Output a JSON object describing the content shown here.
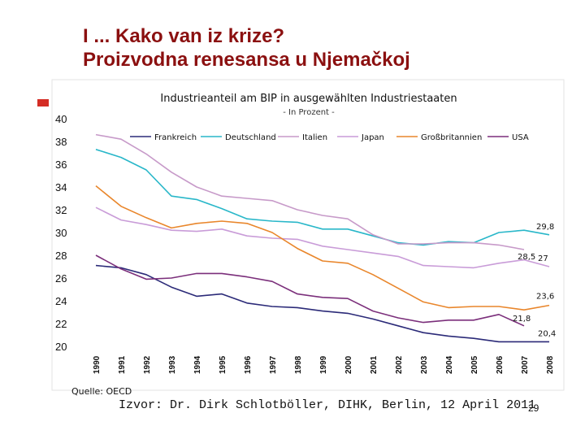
{
  "slide": {
    "title_line1": "I ... Kako van iz krize?",
    "title_line2": "Proizvodna renesansa u Njemačkoj",
    "source": "Quelle: OECD",
    "izvor": "Izvor: Dr. Dirk Schlotböller, DIHK, Berlin, 12 April 2011",
    "page_number": "29",
    "accent_color": "#8b1010"
  },
  "chart_data": {
    "type": "line",
    "title": "Industrieanteil am BIP in ausgewählten Industriestaaten",
    "subtitle": "- In Prozent -",
    "ylim": [
      20,
      40
    ],
    "yticks": [
      "20",
      "22",
      "24",
      "26",
      "28",
      "30",
      "32",
      "34",
      "36",
      "38",
      "40"
    ],
    "x": [
      "1990",
      "1991",
      "1992",
      "1993",
      "1994",
      "1995",
      "1996",
      "1997",
      "1998",
      "1999",
      "2000",
      "2001",
      "2002",
      "2003",
      "2004",
      "2005",
      "2006",
      "2007",
      "2008"
    ],
    "grid": false,
    "legend_position": "top",
    "series": [
      {
        "name": "Frankreich",
        "color": "#2b2a78",
        "values": [
          27.1,
          26.9,
          26.3,
          25.2,
          24.4,
          24.6,
          23.8,
          23.5,
          23.4,
          23.1,
          22.9,
          22.4,
          21.8,
          21.2,
          20.9,
          20.7,
          20.4,
          20.4,
          20.4
        ]
      },
      {
        "name": "Deutschland",
        "color": "#29b7c9",
        "values": [
          37.3,
          36.6,
          35.5,
          33.2,
          32.9,
          32.1,
          31.2,
          31.0,
          30.9,
          30.3,
          30.3,
          29.7,
          29.1,
          28.9,
          29.2,
          29.1,
          30.0,
          30.2,
          29.8
        ]
      },
      {
        "name": "Italien",
        "color": "#c79ac9",
        "values": [
          38.6,
          38.2,
          36.9,
          35.3,
          34.0,
          33.2,
          33.0,
          32.8,
          32.0,
          31.5,
          31.2,
          29.8,
          29.0,
          29.0,
          29.1,
          29.1,
          28.9,
          28.5,
          null
        ]
      },
      {
        "name": "Japan",
        "color": "#c99cd8",
        "values": [
          32.2,
          31.1,
          30.7,
          30.2,
          30.1,
          30.3,
          29.7,
          29.5,
          29.4,
          28.8,
          28.5,
          28.2,
          27.9,
          27.1,
          27.0,
          26.9,
          27.3,
          27.6,
          27.0
        ]
      },
      {
        "name": "Großbritannien",
        "color": "#e9862b",
        "values": [
          34.1,
          32.3,
          31.3,
          30.4,
          30.8,
          31.0,
          30.8,
          30.0,
          28.6,
          27.5,
          27.3,
          26.3,
          25.1,
          23.9,
          23.4,
          23.5,
          23.5,
          23.2,
          23.6
        ]
      },
      {
        "name": "USA",
        "color": "#7b2f7b",
        "values": [
          28.0,
          26.8,
          25.9,
          26.0,
          26.4,
          26.4,
          26.1,
          25.7,
          24.6,
          24.3,
          24.2,
          23.1,
          22.5,
          22.1,
          22.3,
          22.3,
          22.8,
          21.8,
          null
        ]
      }
    ],
    "data_labels": [
      {
        "text": "29,8",
        "series": "Deutschland",
        "x": "2008",
        "y": 29.8
      },
      {
        "text": "28,5",
        "series": "Italien",
        "x": "2007",
        "y": 28.5
      },
      {
        "text": "27",
        "series": "Japan",
        "x": "2008",
        "y": 27.0
      },
      {
        "text": "23,6",
        "series": "Großbritannien",
        "x": "2008",
        "y": 23.6
      },
      {
        "text": "21,8",
        "series": "USA",
        "x": "2007",
        "y": 21.8
      },
      {
        "text": "20,4",
        "series": "Frankreich",
        "x": "2008",
        "y": 20.4
      }
    ]
  }
}
